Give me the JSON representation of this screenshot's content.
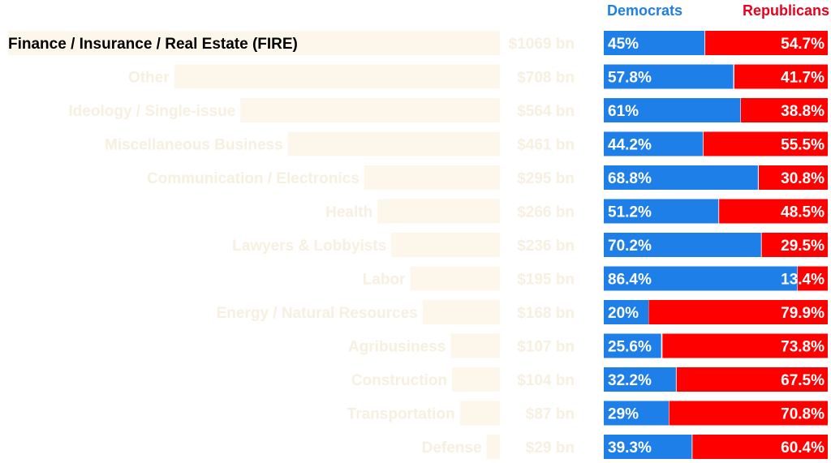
{
  "legend": {
    "democrats": "Democrats",
    "republicans": "Republicans"
  },
  "colors": {
    "democrats": "#1f7fe8",
    "republicans": "#ff0000",
    "sector_bar": "#fdf6ea",
    "faded_text": "#f7efe0",
    "highlight_text": "#000000"
  },
  "chart_data": {
    "type": "bar",
    "title": "",
    "xlabel": "",
    "ylabel": "",
    "highlighted_category": "Finance / Insurance / Real Estate (FIRE)",
    "categories": [
      "Finance / Insurance / Real Estate (FIRE)",
      "Other",
      "Ideology / Single-issue",
      "Miscellaneous Business",
      "Communication / Electronics",
      "Health",
      "Lawyers & Lobbyists",
      "Labor",
      "Energy / Natural Resources",
      "Agribusiness",
      "Construction",
      "Transportation",
      "Defense"
    ],
    "totals_bn": [
      1069,
      708,
      564,
      461,
      295,
      266,
      236,
      195,
      168,
      107,
      104,
      87,
      29
    ],
    "total_labels": [
      "$1069 bn",
      "$708 bn",
      "$564 bn",
      "$461 bn",
      "$295 bn",
      "$266 bn",
      "$236 bn",
      "$195 bn",
      "$168 bn",
      "$107 bn",
      "$104 bn",
      "$87 bn",
      "$29 bn"
    ],
    "series": [
      {
        "name": "Democrats",
        "values": [
          45,
          57.8,
          61,
          44.2,
          68.8,
          51.2,
          70.2,
          86.4,
          20,
          25.6,
          32.2,
          29,
          39.3
        ],
        "labels": [
          "45%",
          "57.8%",
          "61%",
          "44.2%",
          "68.8%",
          "51.2%",
          "70.2%",
          "86.4%",
          "20%",
          "25.6%",
          "32.2%",
          "29%",
          "39.3%"
        ]
      },
      {
        "name": "Republicans",
        "values": [
          54.7,
          41.7,
          38.8,
          55.5,
          30.8,
          48.5,
          29.5,
          13.4,
          79.9,
          73.8,
          67.5,
          70.8,
          60.4
        ],
        "labels": [
          "54.7%",
          "41.7%",
          "38.8%",
          "55.5%",
          "30.8%",
          "48.5%",
          "29.5%",
          "13.4%",
          "79.9%",
          "73.8%",
          "67.5%",
          "70.8%",
          "60.4%"
        ]
      }
    ],
    "legend_position": "top-right"
  }
}
